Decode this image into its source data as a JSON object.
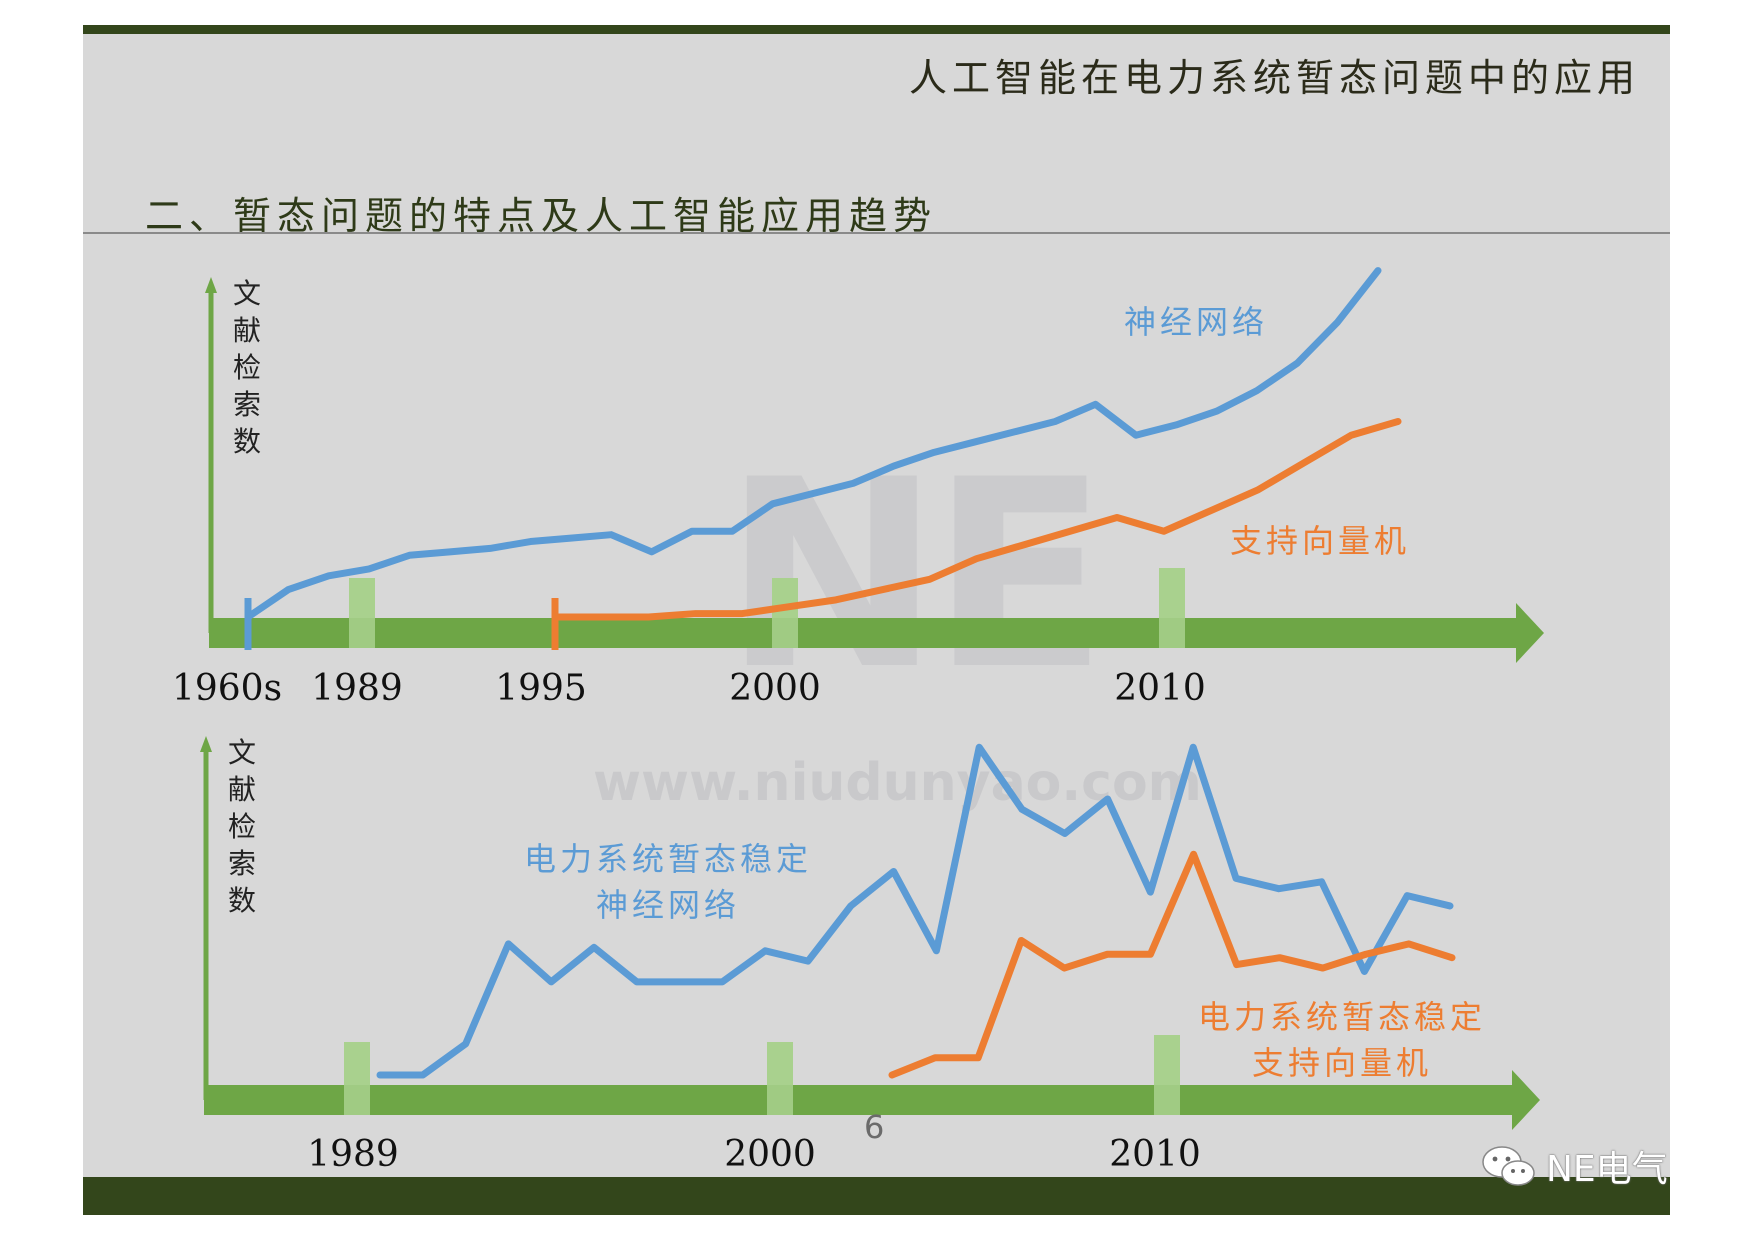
{
  "slide": {
    "title": "人工智能在电力系统暂态问题中的应用",
    "section_title": "二、暂态问题的特点及人工智能应用趋势",
    "page_number": "6",
    "watermark": {
      "logo": "NE",
      "url": "www.niudunyao.com"
    },
    "brand": {
      "icon": "wechat-icon",
      "name": "NE电气"
    }
  },
  "colors": {
    "axis_green": "#6ea646",
    "highlight_green": "#a9d18e",
    "neural_network_blue": "#5b9bd5",
    "svm_orange": "#ed7d31",
    "bar_dark_green": "#33461b"
  },
  "chart_data": [
    {
      "type": "line",
      "ylabel": "文献检索数",
      "x_tick_labels": [
        "1960s",
        "1989",
        "1995",
        "2000",
        "2010"
      ],
      "highlighted_years": [
        "1989",
        "2000",
        "2010"
      ],
      "grid": false,
      "series": [
        {
          "name": "神经网络",
          "color": "#5b9bd5",
          "start_marker": "1960s",
          "points": [
            [
              "1960s",
              0
            ],
            [
              "",
              8
            ],
            [
              "1989",
              12
            ],
            [
              "",
              14
            ],
            [
              "",
              18
            ],
            [
              "",
              19
            ],
            [
              "",
              20
            ],
            [
              "",
              22
            ],
            [
              "",
              23
            ],
            [
              "",
              24
            ],
            [
              "",
              19
            ],
            [
              "",
              25
            ],
            [
              "2000",
              25
            ],
            [
              "",
              33
            ],
            [
              "",
              36
            ],
            [
              "",
              39
            ],
            [
              "",
              44
            ],
            [
              "",
              48
            ],
            [
              "",
              51
            ],
            [
              "",
              54
            ],
            [
              "",
              57
            ],
            [
              "",
              62
            ],
            [
              "",
              53
            ],
            [
              "2010",
              56
            ],
            [
              "",
              60
            ],
            [
              "",
              66
            ],
            [
              "",
              74
            ],
            [
              "",
              86
            ],
            [
              "",
              101
            ]
          ]
        },
        {
          "name": "支持向量机",
          "color": "#ed7d31",
          "start_marker": "1995",
          "points": [
            [
              "1995",
              0
            ],
            [
              "",
              0
            ],
            [
              "",
              0
            ],
            [
              "",
              1
            ],
            [
              "2000",
              1
            ],
            [
              "",
              3
            ],
            [
              "",
              5
            ],
            [
              "",
              8
            ],
            [
              "",
              11
            ],
            [
              "",
              17
            ],
            [
              "",
              21
            ],
            [
              "",
              25
            ],
            [
              "",
              29
            ],
            [
              "2010",
              25
            ],
            [
              "",
              31
            ],
            [
              "",
              37
            ],
            [
              "",
              45
            ],
            [
              "",
              53
            ],
            [
              "",
              57
            ]
          ]
        }
      ]
    },
    {
      "type": "line",
      "ylabel": "文献检索数",
      "x_tick_labels": [
        "1989",
        "2000",
        "2010"
      ],
      "highlighted_years": [
        "1989",
        "2000",
        "2010"
      ],
      "grid": false,
      "series": [
        {
          "name": "电力系统暂态稳定 神经网络",
          "label_lines": [
            "电力系统暂态稳定",
            "神经网络"
          ],
          "color": "#5b9bd5",
          "values": [
            0,
            0,
            9,
            38,
            27,
            37,
            27,
            27,
            27,
            36,
            33,
            49,
            59,
            36,
            95,
            77,
            70,
            80,
            53,
            95,
            57,
            54,
            56,
            30,
            52,
            49
          ]
        },
        {
          "name": "电力系统暂态稳定 支持向量机",
          "label_lines": [
            "电力系统暂态稳定",
            "支持向量机"
          ],
          "color": "#ed7d31",
          "values": [
            0,
            5,
            5,
            39,
            31,
            35,
            35,
            64,
            32,
            34,
            31,
            35,
            38,
            34
          ]
        }
      ]
    }
  ]
}
